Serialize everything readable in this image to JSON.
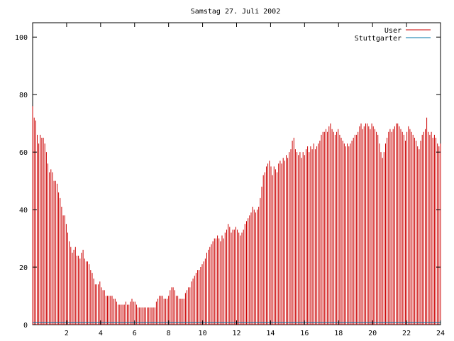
{
  "chart_data": {
    "type": "bar",
    "title": "Samstag 27. Juli 2002",
    "xlabel": "",
    "ylabel": "",
    "xlim": [
      0,
      24
    ],
    "ylim": [
      0,
      105
    ],
    "x_ticks": [
      2,
      4,
      6,
      8,
      10,
      12,
      14,
      16,
      18,
      20,
      22,
      24
    ],
    "y_ticks": [
      0,
      20,
      40,
      60,
      80,
      100
    ],
    "grid": false,
    "legend_position": "top-right",
    "legend": [
      "User",
      "Stuttgarter"
    ],
    "series": [
      {
        "name": "User",
        "color": "#cc0000",
        "values": [
          76,
          72,
          71,
          66,
          63,
          66,
          65,
          65,
          63,
          60,
          56,
          53,
          54,
          53,
          50,
          50,
          49,
          46,
          44,
          41,
          38,
          38,
          35,
          32,
          29,
          27,
          25,
          26,
          27,
          24,
          24,
          23,
          25,
          26,
          23,
          22,
          22,
          21,
          19,
          18,
          16,
          14,
          14,
          14,
          15,
          13,
          12,
          12,
          10,
          10,
          10,
          10,
          10,
          9,
          9,
          8,
          7,
          7,
          7,
          7,
          7,
          8,
          7,
          7,
          8,
          9,
          8,
          8,
          7,
          6,
          6,
          6,
          6,
          6,
          6,
          6,
          6,
          6,
          6,
          6,
          6,
          8,
          9,
          10,
          10,
          10,
          9,
          9,
          9,
          10,
          12,
          13,
          13,
          12,
          10,
          10,
          9,
          9,
          9,
          9,
          11,
          12,
          13,
          13,
          15,
          16,
          17,
          18,
          19,
          19,
          20,
          21,
          22,
          23,
          25,
          26,
          27,
          28,
          29,
          30,
          30,
          31,
          30,
          29,
          31,
          30,
          32,
          33,
          35,
          34,
          32,
          33,
          33,
          34,
          33,
          32,
          31,
          32,
          33,
          35,
          36,
          37,
          38,
          39,
          41,
          40,
          39,
          40,
          41,
          44,
          48,
          52,
          53,
          55,
          56,
          57,
          55,
          52,
          55,
          54,
          53,
          56,
          57,
          56,
          58,
          57,
          59,
          58,
          60,
          61,
          64,
          65,
          61,
          60,
          59,
          60,
          58,
          60,
          59,
          61,
          62,
          60,
          62,
          61,
          63,
          61,
          62,
          63,
          64,
          66,
          67,
          67,
          68,
          67,
          69,
          70,
          68,
          67,
          66,
          67,
          68,
          66,
          65,
          64,
          63,
          62,
          63,
          62,
          63,
          64,
          65,
          66,
          66,
          67,
          69,
          70,
          68,
          69,
          70,
          70,
          69,
          68,
          70,
          69,
          68,
          67,
          66,
          63,
          60,
          58,
          60,
          63,
          65,
          67,
          68,
          67,
          68,
          69,
          70,
          70,
          69,
          68,
          67,
          66,
          64,
          67,
          69,
          68,
          67,
          66,
          65,
          64,
          62,
          61,
          64,
          66,
          67,
          68,
          72,
          67,
          66,
          67,
          65,
          66,
          65,
          63,
          62,
          63
        ]
      },
      {
        "name": "Stuttgarter",
        "color": "#0077aa",
        "values": [
          0.8
        ]
      }
    ],
    "annotations": []
  }
}
